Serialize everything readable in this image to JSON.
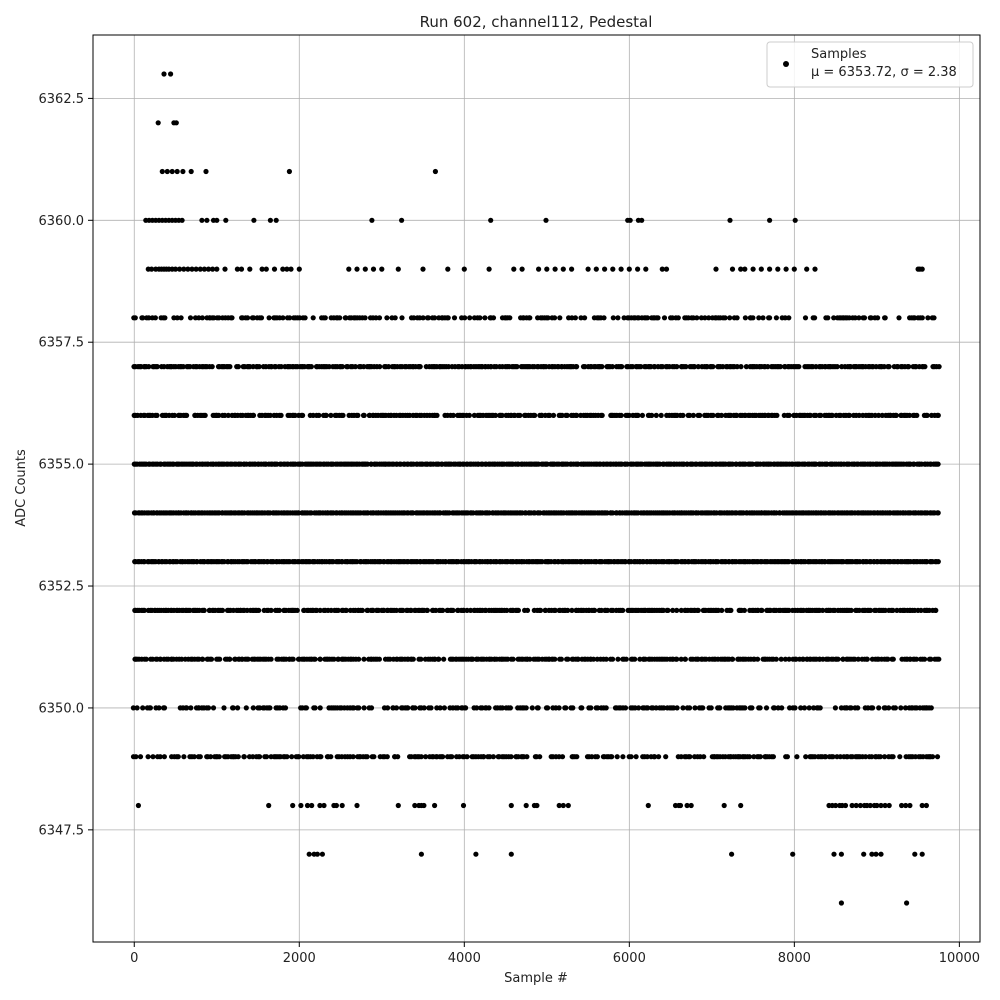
{
  "chart_data": {
    "type": "scatter",
    "title": "Run 602, channel112, Pedestal",
    "xlabel": "Sample #",
    "ylabel": "ADC Counts",
    "xlim": [
      -500,
      10250
    ],
    "ylim": [
      6345.2,
      6363.8
    ],
    "xticks": [
      0,
      2000,
      4000,
      6000,
      8000,
      10000
    ],
    "xtick_labels": [
      "0",
      "2000",
      "4000",
      "6000",
      "8000",
      "10000"
    ],
    "yticks": [
      6347.5,
      6350.0,
      6352.5,
      6355.0,
      6357.5,
      6360.0,
      6362.5
    ],
    "ytick_labels": [
      "6347.5",
      "6350.0",
      "6352.5",
      "6355.0",
      "6357.5",
      "6360.0",
      "6362.5"
    ],
    "grid": true,
    "legend_position": "top-right",
    "marker_color": "#000000",
    "legend": [
      {
        "label": "Samples",
        "stats": "μ = 6353.72, σ = 2.38"
      }
    ],
    "n_samples": 9750,
    "levels": [
      {
        "y": 6363,
        "x": [
          360,
          440
        ]
      },
      {
        "y": 6362,
        "x": [
          290,
          480,
          510
        ]
      },
      {
        "y": 6361,
        "x": [
          340,
          400,
          460,
          520,
          590,
          690,
          870,
          1880,
          3650
        ]
      },
      {
        "y": 6360,
        "x": [
          140,
          180,
          220,
          260,
          300,
          340,
          380,
          420,
          460,
          500,
          540,
          580,
          820,
          880,
          960,
          1000,
          1110,
          1450,
          1650,
          1720,
          2880,
          3240,
          4320,
          4990,
          5980,
          6010,
          6110,
          6150,
          7220,
          7700,
          8010
        ]
      },
      {
        "y": 6359,
        "x": [
          170,
          210,
          260,
          300,
          330,
          360,
          390,
          420,
          460,
          500,
          550,
          600,
          650,
          700,
          750,
          800,
          850,
          900,
          950,
          1000,
          1100,
          1250,
          1300,
          1400,
          1550,
          1600,
          1700,
          1800,
          1850,
          1900,
          2000,
          2600,
          2700,
          2800,
          2900,
          3000,
          3200,
          3500,
          3800,
          4000,
          4300,
          4600,
          4700,
          4900,
          5000,
          5100,
          5200,
          5300,
          5500,
          5600,
          5700,
          5800,
          5900,
          6000,
          6100,
          6200,
          6400,
          6450,
          7050,
          7250,
          7350,
          7400,
          7500,
          7600,
          7700,
          7800,
          7900,
          8000,
          8150,
          8250,
          9500,
          9520,
          9550
        ]
      },
      {
        "y": 6358,
        "fill_from": 0,
        "fill_to": 9750,
        "density": 0.55,
        "seed": 11
      },
      {
        "y": 6357,
        "fill_from": 0,
        "fill_to": 9750,
        "density": 0.8,
        "seed": 12
      },
      {
        "y": 6356,
        "fill_from": 0,
        "fill_to": 9750,
        "density": 0.75,
        "seed": 13
      },
      {
        "y": 6355,
        "fill_from": 0,
        "fill_to": 9750,
        "density": 1.0,
        "seed": 14
      },
      {
        "y": 6354,
        "fill_from": 0,
        "fill_to": 9750,
        "density": 1.0,
        "seed": 15
      },
      {
        "y": 6353,
        "fill_from": 0,
        "fill_to": 9750,
        "density": 1.0,
        "seed": 16
      },
      {
        "y": 6352,
        "fill_from": 0,
        "fill_to": 9750,
        "density": 0.85,
        "seed": 17
      },
      {
        "y": 6351,
        "fill_from": 0,
        "fill_to": 9750,
        "density": 0.8,
        "seed": 18
      },
      {
        "y": 6350,
        "fill_from": 0,
        "fill_to": 9750,
        "density": 0.5,
        "seed": 19
      },
      {
        "y": 6349,
        "fill_from": 0,
        "fill_to": 9750,
        "density": 0.6,
        "seed": 20
      },
      {
        "y": 6348,
        "x": [
          50,
          1630,
          1920,
          2020,
          2100,
          2150,
          2250,
          2300,
          2420,
          2450,
          2520,
          2700,
          3200,
          3400,
          3450,
          3480,
          3510,
          3640,
          3990,
          4570,
          4750,
          4850,
          4880,
          5150,
          5200,
          5260,
          6230,
          6560,
          6600,
          6620,
          6700,
          6750,
          7150,
          7350,
          8420,
          8460,
          8500,
          8550,
          8580,
          8620,
          8700,
          8750,
          8800,
          8850,
          8880,
          8920,
          8970,
          9000,
          9050,
          9100,
          9150,
          9300,
          9350,
          9400,
          9550,
          9600
        ]
      },
      {
        "y": 6347,
        "x": [
          2120,
          2180,
          2220,
          2280,
          3480,
          4140,
          4570,
          7240,
          7980,
          8480,
          8570,
          8840,
          8940,
          8990,
          9050,
          9460,
          9550
        ]
      },
      {
        "y": 6346,
        "x": [
          8570,
          9360
        ]
      }
    ]
  }
}
